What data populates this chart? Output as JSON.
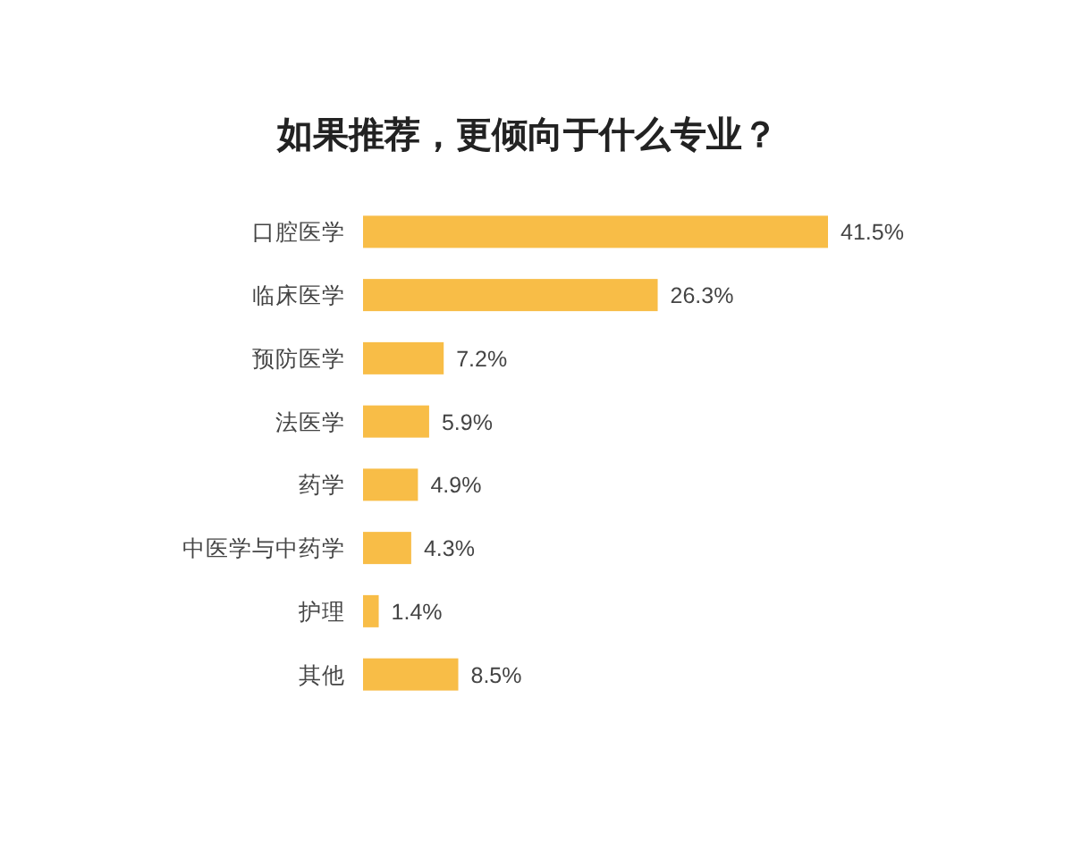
{
  "chart_data": {
    "type": "bar",
    "orientation": "horizontal",
    "title": "如果推荐，更倾向于什么专业？",
    "categories": [
      "口腔医学",
      "临床医学",
      "预防医学",
      "法医学",
      "药学",
      "中医学与中药学",
      "护理",
      "其他"
    ],
    "values": [
      41.5,
      26.3,
      7.2,
      5.9,
      4.9,
      4.3,
      1.4,
      8.5
    ],
    "value_labels": [
      "41.5%",
      "26.3%",
      "7.2%",
      "5.9%",
      "4.9%",
      "4.3%",
      "1.4%",
      "8.5%"
    ],
    "color": "#f8bd47"
  }
}
